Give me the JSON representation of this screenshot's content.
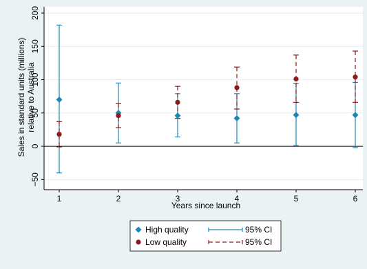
{
  "chart_data": {
    "type": "scatter",
    "xlabel": "Years since launch",
    "ylabel_lines": [
      "Sales in standard units (millions)",
      "relative to Australia"
    ],
    "x": [
      1,
      2,
      3,
      4,
      5,
      6
    ],
    "xlim": [
      1,
      6
    ],
    "ylim": [
      -60,
      200
    ],
    "x_ticks": [
      "1",
      "2",
      "3",
      "4",
      "5",
      "6"
    ],
    "y_ticks": [
      {
        "value": -50,
        "label": "−50"
      },
      {
        "value": 0,
        "label": "0"
      },
      {
        "value": 50,
        "label": "50"
      },
      {
        "value": 100,
        "label": "100"
      },
      {
        "value": 150,
        "label": "150"
      },
      {
        "value": 200,
        "label": "200"
      }
    ],
    "grid": true,
    "reference_line_y": 0,
    "legend_position": "bottom",
    "series": [
      {
        "name": "High quality",
        "marker": "diamond",
        "color": "#1a87b5",
        "ci_label": "95% CI",
        "ci_style": "solid",
        "values": [
          70,
          50,
          46,
          42,
          47,
          47
        ],
        "ci_lower": [
          -40,
          5,
          14,
          5,
          1,
          -2
        ],
        "ci_upper": [
          182,
          95,
          79,
          79,
          94,
          96
        ]
      },
      {
        "name": "Low quality",
        "marker": "circle",
        "color": "#8b1a1a",
        "ci_label": "95% CI",
        "ci_style": "dashed",
        "values": [
          18,
          46,
          66,
          88,
          101,
          104
        ],
        "ci_lower": [
          -1,
          28,
          42,
          56,
          66,
          66
        ],
        "ci_upper": [
          37,
          64,
          90,
          119,
          137,
          143
        ]
      }
    ]
  }
}
